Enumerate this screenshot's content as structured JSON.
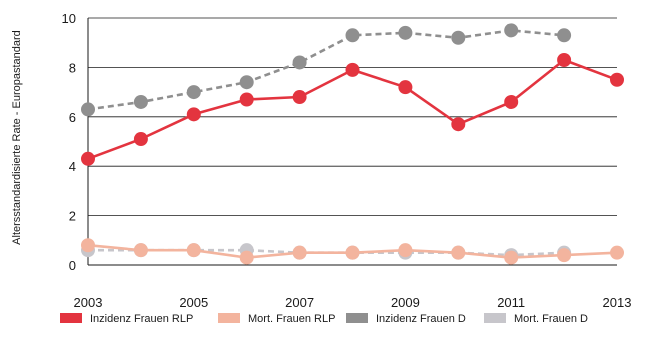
{
  "chart_data": {
    "type": "line",
    "title": "",
    "xlabel": "",
    "ylabel": "Altersstandardisierte Rate - Europastandard",
    "xlim": [
      2003,
      2013
    ],
    "ylim": [
      0,
      10
    ],
    "x_ticks": [
      "2003",
      "2005",
      "2007",
      "2009",
      "2011",
      "2013"
    ],
    "y_ticks": [
      "0",
      "2",
      "4",
      "6",
      "8",
      "10"
    ],
    "grid": "horizontal",
    "legend_position": "bottom",
    "x": [
      2003,
      2004,
      2005,
      2006,
      2007,
      2008,
      2009,
      2010,
      2011,
      2012,
      2013
    ],
    "series": [
      {
        "name": "Inzidenz Frauen RLP",
        "color": "#e3343f",
        "dash": "solid",
        "values": [
          4.3,
          5.1,
          6.1,
          6.7,
          6.8,
          7.9,
          7.2,
          5.7,
          6.6,
          8.3,
          7.5
        ]
      },
      {
        "name": "Mort. Frauen RLP",
        "color": "#f3b49e",
        "dash": "solid",
        "values": [
          0.8,
          0.6,
          0.6,
          0.3,
          0.5,
          0.5,
          0.6,
          0.5,
          0.3,
          0.4,
          0.5
        ]
      },
      {
        "name": "Inzidenz Frauen D",
        "color": "#8f8f8f",
        "dash": "dashed",
        "values": [
          6.3,
          6.6,
          7.0,
          7.4,
          8.2,
          9.3,
          9.4,
          9.2,
          9.5,
          9.3,
          null
        ]
      },
      {
        "name": "Mort. Frauen D",
        "color": "#c7c6cb",
        "dash": "dashed",
        "values": [
          0.6,
          0.6,
          0.6,
          0.6,
          0.5,
          0.5,
          0.5,
          0.5,
          0.4,
          0.5,
          null
        ]
      }
    ]
  }
}
